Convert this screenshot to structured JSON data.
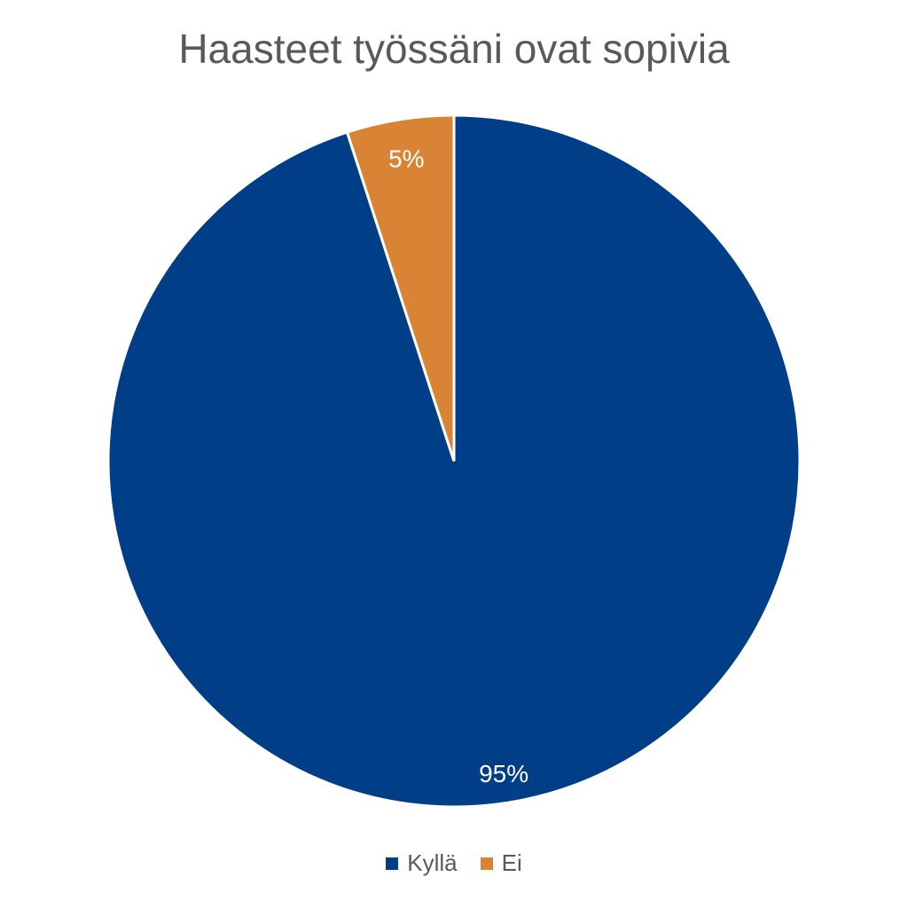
{
  "chart_data": {
    "type": "pie",
    "title": "Haasteet työssäni ovat sopivia",
    "slices": [
      {
        "label": "Kyllä",
        "value": 95,
        "data_label": "95%",
        "color": "#003F87"
      },
      {
        "label": "Ei",
        "value": 5,
        "data_label": "5%",
        "color": "#D98334"
      }
    ],
    "start": "top",
    "direction": "clockwise",
    "legend_position": "bottom"
  }
}
